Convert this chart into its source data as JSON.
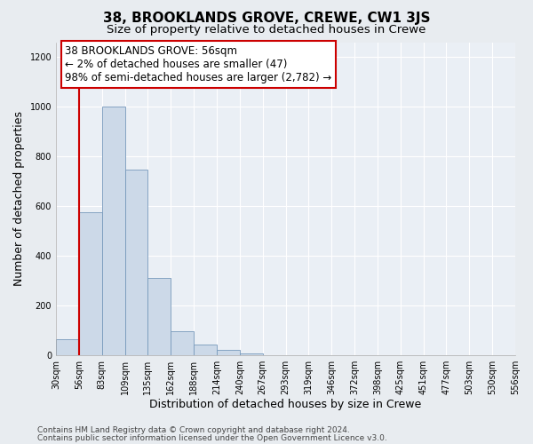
{
  "title": "38, BROOKLANDS GROVE, CREWE, CW1 3JS",
  "subtitle": "Size of property relative to detached houses in Crewe",
  "xlabel": "Distribution of detached houses by size in Crewe",
  "ylabel": "Number of detached properties",
  "bar_values": [
    65,
    575,
    1000,
    745,
    310,
    95,
    42,
    20,
    5,
    0,
    0,
    0,
    0,
    0,
    0,
    0,
    0,
    0,
    0,
    0
  ],
  "bar_labels": [
    "30sqm",
    "56sqm",
    "83sqm",
    "109sqm",
    "135sqm",
    "162sqm",
    "188sqm",
    "214sqm",
    "240sqm",
    "267sqm",
    "293sqm",
    "319sqm",
    "346sqm",
    "372sqm",
    "398sqm",
    "425sqm",
    "451sqm",
    "477sqm",
    "503sqm",
    "530sqm",
    "556sqm"
  ],
  "bar_color": "#ccd9e8",
  "bar_edge_color": "#7799bb",
  "highlight_bar_index": 1,
  "highlight_bar_edge_color": "#cc0000",
  "annotation_box_text": "38 BROOKLANDS GROVE: 56sqm\n← 2% of detached houses are smaller (47)\n98% of semi-detached houses are larger (2,782) →",
  "annotation_box_color": "#ffffff",
  "annotation_box_edge_color": "#cc0000",
  "red_line_x": 1,
  "ylim": [
    0,
    1260
  ],
  "yticks": [
    0,
    200,
    400,
    600,
    800,
    1000,
    1200
  ],
  "bg_color": "#e8ecf0",
  "plot_bg_color": "#eaeff5",
  "grid_color": "#ffffff",
  "footer_line1": "Contains HM Land Registry data © Crown copyright and database right 2024.",
  "footer_line2": "Contains public sector information licensed under the Open Government Licence v3.0.",
  "title_fontsize": 11,
  "subtitle_fontsize": 9.5,
  "annotation_fontsize": 8.5,
  "axis_label_fontsize": 9,
  "tick_fontsize": 7,
  "footer_fontsize": 6.5
}
